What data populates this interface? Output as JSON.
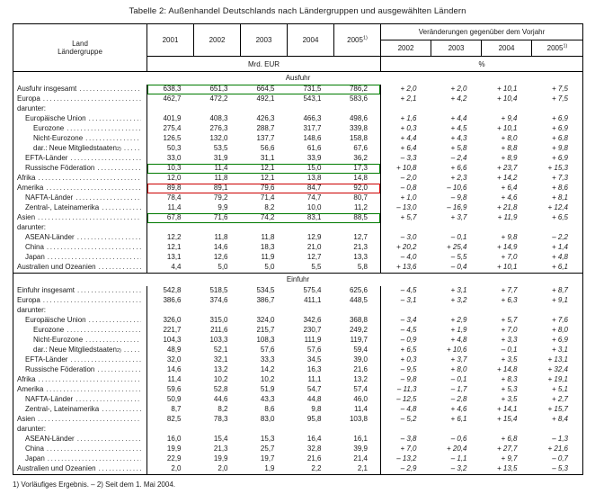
{
  "title": "Tabelle 2: Außenhandel Deutschlands nach Ländergruppen und ausgewählten Ländern",
  "footnote": "1) Vorläufiges Ergebnis. – 2) Seit dem 1. Mai 2004.",
  "leader_dots": ".........................................................................",
  "colors": {
    "box_green": "#007a00",
    "box_red": "#cc0000"
  },
  "columns": {
    "stub_line1": "Land",
    "stub_line2": "Ländergruppe",
    "value_unit": "Mrd. EUR",
    "change_header": "Veränderungen gegenüber dem Vorjahr",
    "change_unit": "%",
    "value_years": [
      {
        "y": "2001",
        "sup": ""
      },
      {
        "y": "2002",
        "sup": ""
      },
      {
        "y": "2003",
        "sup": ""
      },
      {
        "y": "2004",
        "sup": ""
      },
      {
        "y": "2005",
        "sup": "1)"
      }
    ],
    "change_years": [
      {
        "y": "2002",
        "sup": ""
      },
      {
        "y": "2003",
        "sup": ""
      },
      {
        "y": "2004",
        "sup": ""
      },
      {
        "y": "2005",
        "sup": "1)"
      }
    ]
  },
  "sections": [
    {
      "name": "Ausfuhr",
      "rows": [
        {
          "label": "Ausfuhr insgesamt",
          "indent": 0,
          "values": [
            "638,3",
            "651,3",
            "664,5",
            "731,5",
            "786,2"
          ],
          "changes": [
            "+ 2,0",
            "+ 2,0",
            "+ 10,1",
            "+ 7,5"
          ],
          "box": "green"
        },
        {
          "label": "Europa",
          "indent": 0,
          "values": [
            "462,7",
            "472,2",
            "492,1",
            "543,1",
            "583,6"
          ],
          "changes": [
            "+ 2,1",
            "+ 4,2",
            "+ 10,4",
            "+ 7,5"
          ]
        },
        {
          "label": "darunter:",
          "indent": 0
        },
        {
          "label": "Europäische Union",
          "indent": 1,
          "values": [
            "401,9",
            "408,3",
            "426,3",
            "466,3",
            "498,6"
          ],
          "changes": [
            "+ 1,6",
            "+ 4,4",
            "+ 9,4",
            "+ 6,9"
          ]
        },
        {
          "label": "Eurozone",
          "indent": 2,
          "values": [
            "275,4",
            "276,3",
            "288,7",
            "317,7",
            "339,8"
          ],
          "changes": [
            "+ 0,3",
            "+ 4,5",
            "+ 10,1",
            "+ 6,9"
          ]
        },
        {
          "label": "Nicht-Eurozone",
          "indent": 2,
          "values": [
            "126,5",
            "132,0",
            "137,7",
            "148,6",
            "158,8"
          ],
          "changes": [
            "+ 4,4",
            "+ 4,3",
            "+ 8,0",
            "+ 6,8"
          ]
        },
        {
          "label": "dar.: Neue Mitgliedstaaten",
          "sup": "2)",
          "indent": 2,
          "values": [
            "50,3",
            "53,5",
            "56,6",
            "61,6",
            "67,6"
          ],
          "changes": [
            "+ 6,4",
            "+ 5,8",
            "+ 8,8",
            "+ 9,8"
          ]
        },
        {
          "label": "EFTA-Länder",
          "indent": 1,
          "values": [
            "33,0",
            "31,9",
            "31,1",
            "33,9",
            "36,2"
          ],
          "changes": [
            "– 3,3",
            "– 2,4",
            "+ 8,9",
            "+ 6,9"
          ]
        },
        {
          "label": "Russische Föderation",
          "indent": 1,
          "values": [
            "10,3",
            "11,4",
            "12,1",
            "15,0",
            "17,3"
          ],
          "changes": [
            "+ 10,8",
            "+ 6,6",
            "+ 23,7",
            "+ 15,3"
          ],
          "box": "green"
        },
        {
          "label": "Afrika",
          "indent": 0,
          "values": [
            "12,0",
            "11,8",
            "12,1",
            "13,8",
            "14,8"
          ],
          "changes": [
            "– 2,0",
            "+ 2,3",
            "+ 14,2",
            "+ 7,3"
          ]
        },
        {
          "label": "Amerika",
          "indent": 0,
          "values": [
            "89,8",
            "89,1",
            "79,6",
            "84,7",
            "92,0"
          ],
          "changes": [
            "– 0,8",
            "– 10,6",
            "+ 6,4",
            "+ 8,6"
          ],
          "box": "red"
        },
        {
          "label": "NAFTA-Länder",
          "indent": 1,
          "values": [
            "78,4",
            "79,2",
            "71,4",
            "74,7",
            "80,7"
          ],
          "changes": [
            "+ 1,0",
            "– 9,8",
            "+ 4,6",
            "+ 8,1"
          ]
        },
        {
          "label": "Zentral-, Lateinamerika",
          "indent": 1,
          "values": [
            "11,4",
            "9,9",
            "8,2",
            "10,0",
            "11,2"
          ],
          "changes": [
            "– 13,0",
            "– 16,9",
            "+ 21,8",
            "+ 12,4"
          ]
        },
        {
          "label": "Asien",
          "indent": 0,
          "values": [
            "67,8",
            "71,6",
            "74,2",
            "83,1",
            "88,5"
          ],
          "changes": [
            "+ 5,7",
            "+ 3,7",
            "+ 11,9",
            "+ 6,5"
          ],
          "box": "green"
        },
        {
          "label": "darunter:",
          "indent": 0
        },
        {
          "label": "ASEAN-Länder",
          "indent": 1,
          "values": [
            "12,2",
            "11,8",
            "11,8",
            "12,9",
            "12,7"
          ],
          "changes": [
            "– 3,0",
            "– 0,1",
            "+ 9,8",
            "– 2,2"
          ]
        },
        {
          "label": "China",
          "indent": 1,
          "values": [
            "12,1",
            "14,6",
            "18,3",
            "21,0",
            "21,3"
          ],
          "changes": [
            "+ 20,2",
            "+ 25,4",
            "+ 14,9",
            "+ 1,4"
          ]
        },
        {
          "label": "Japan",
          "indent": 1,
          "values": [
            "13,1",
            "12,6",
            "11,9",
            "12,7",
            "13,3"
          ],
          "changes": [
            "– 4,0",
            "– 5,5",
            "+ 7,0",
            "+ 4,8"
          ]
        },
        {
          "label": "Australien und Ozeanien",
          "indent": 0,
          "values": [
            "4,4",
            "5,0",
            "5,0",
            "5,5",
            "5,8"
          ],
          "changes": [
            "+ 13,6",
            "– 0,4",
            "+ 10,1",
            "+ 6,1"
          ]
        }
      ]
    },
    {
      "name": "Einfuhr",
      "rows": [
        {
          "label": "Einfuhr insgesamt",
          "indent": 0,
          "values": [
            "542,8",
            "518,5",
            "534,5",
            "575,4",
            "625,6"
          ],
          "changes": [
            "– 4,5",
            "+ 3,1",
            "+ 7,7",
            "+ 8,7"
          ]
        },
        {
          "label": "Europa",
          "indent": 0,
          "values": [
            "386,6",
            "374,6",
            "386,7",
            "411,1",
            "448,5"
          ],
          "changes": [
            "– 3,1",
            "+ 3,2",
            "+ 6,3",
            "+ 9,1"
          ]
        },
        {
          "label": "darunter:",
          "indent": 0
        },
        {
          "label": "Europäische Union",
          "indent": 1,
          "values": [
            "326,0",
            "315,0",
            "324,0",
            "342,6",
            "368,8"
          ],
          "changes": [
            "– 3,4",
            "+ 2,9",
            "+ 5,7",
            "+ 7,6"
          ]
        },
        {
          "label": "Eurozone",
          "indent": 2,
          "values": [
            "221,7",
            "211,6",
            "215,7",
            "230,7",
            "249,2"
          ],
          "changes": [
            "– 4,5",
            "+ 1,9",
            "+ 7,0",
            "+ 8,0"
          ]
        },
        {
          "label": "Nicht-Eurozone",
          "indent": 2,
          "values": [
            "104,3",
            "103,3",
            "108,3",
            "111,9",
            "119,7"
          ],
          "changes": [
            "– 0,9",
            "+ 4,8",
            "+ 3,3",
            "+ 6,9"
          ]
        },
        {
          "label": "dar.: Neue Mitgliedstaaten",
          "sup": "2)",
          "indent": 2,
          "values": [
            "48,9",
            "52,1",
            "57,6",
            "57,6",
            "59,4"
          ],
          "changes": [
            "+ 6,5",
            "+ 10,6",
            "– 0,1",
            "+ 3,1"
          ]
        },
        {
          "label": "EFTA-Länder",
          "indent": 1,
          "values": [
            "32,0",
            "32,1",
            "33,3",
            "34,5",
            "39,0"
          ],
          "changes": [
            "+ 0,3",
            "+ 3,7",
            "+ 3,5",
            "+ 13,1"
          ]
        },
        {
          "label": "Russische Föderation",
          "indent": 1,
          "values": [
            "14,6",
            "13,2",
            "14,2",
            "16,3",
            "21,6"
          ],
          "changes": [
            "– 9,5",
            "+ 8,0",
            "+ 14,8",
            "+ 32,4"
          ]
        },
        {
          "label": "Afrika",
          "indent": 0,
          "values": [
            "11,4",
            "10,2",
            "10,2",
            "11,1",
            "13,2"
          ],
          "changes": [
            "– 9,8",
            "– 0,1",
            "+ 8,3",
            "+ 19,1"
          ]
        },
        {
          "label": "Amerika",
          "indent": 0,
          "values": [
            "59,6",
            "52,8",
            "51,9",
            "54,7",
            "57,4"
          ],
          "changes": [
            "– 11,3",
            "– 1,7",
            "+ 5,3",
            "+ 5,1"
          ]
        },
        {
          "label": "NAFTA-Länder",
          "indent": 1,
          "values": [
            "50,9",
            "44,6",
            "43,3",
            "44,8",
            "46,0"
          ],
          "changes": [
            "– 12,5",
            "– 2,8",
            "+ 3,5",
            "+ 2,7"
          ]
        },
        {
          "label": "Zentral-, Lateinamerika",
          "indent": 1,
          "values": [
            "8,7",
            "8,2",
            "8,6",
            "9,8",
            "11,4"
          ],
          "changes": [
            "– 4,8",
            "+ 4,6",
            "+ 14,1",
            "+ 15,7"
          ]
        },
        {
          "label": "Asien",
          "indent": 0,
          "values": [
            "82,5",
            "78,3",
            "83,0",
            "95,8",
            "103,8"
          ],
          "changes": [
            "– 5,2",
            "+ 6,1",
            "+ 15,4",
            "+ 8,4"
          ]
        },
        {
          "label": "darunter:",
          "indent": 0
        },
        {
          "label": "ASEAN-Länder",
          "indent": 1,
          "values": [
            "16,0",
            "15,4",
            "15,3",
            "16,4",
            "16,1"
          ],
          "changes": [
            "– 3,8",
            "– 0,6",
            "+ 6,8",
            "– 1,3"
          ]
        },
        {
          "label": "China",
          "indent": 1,
          "values": [
            "19,9",
            "21,3",
            "25,7",
            "32,8",
            "39,9"
          ],
          "changes": [
            "+ 7,0",
            "+ 20,4",
            "+ 27,7",
            "+ 21,6"
          ]
        },
        {
          "label": "Japan",
          "indent": 1,
          "values": [
            "22,9",
            "19,9",
            "19,7",
            "21,6",
            "21,4"
          ],
          "changes": [
            "– 13,2",
            "– 1,1",
            "+ 9,7",
            "– 0,7"
          ]
        },
        {
          "label": "Australien und Ozeanien",
          "indent": 0,
          "values": [
            "2,0",
            "2,0",
            "1,9",
            "2,2",
            "2,1"
          ],
          "changes": [
            "– 2,9",
            "– 3,2",
            "+ 13,5",
            "– 5,3"
          ]
        }
      ]
    }
  ]
}
